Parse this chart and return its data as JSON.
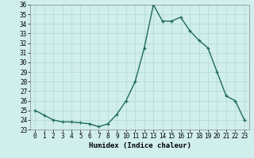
{
  "x": [
    0,
    1,
    2,
    3,
    4,
    5,
    6,
    7,
    8,
    9,
    10,
    11,
    12,
    13,
    14,
    15,
    16,
    17,
    18,
    19,
    20,
    21,
    22,
    23
  ],
  "y": [
    25.0,
    24.5,
    24.0,
    23.8,
    23.8,
    23.7,
    23.6,
    23.3,
    23.6,
    24.6,
    26.0,
    28.0,
    31.5,
    36.0,
    34.3,
    34.3,
    34.7,
    33.3,
    32.3,
    31.5,
    29.0,
    26.5,
    26.0,
    24.0
  ],
  "xlabel": "Humidex (Indice chaleur)",
  "xlim": [
    -0.5,
    23.5
  ],
  "ylim": [
    23,
    36
  ],
  "yticks": [
    23,
    24,
    25,
    26,
    27,
    28,
    29,
    30,
    31,
    32,
    33,
    34,
    35,
    36
  ],
  "xticks": [
    0,
    1,
    2,
    3,
    4,
    5,
    6,
    7,
    8,
    9,
    10,
    11,
    12,
    13,
    14,
    15,
    16,
    17,
    18,
    19,
    20,
    21,
    22,
    23
  ],
  "line_color": "#1f6b5a",
  "marker": "+",
  "bg_color": "#d0eeec",
  "grid_color": "#b0d8d5",
  "axis_label_fontsize": 6.5,
  "tick_fontsize": 5.5,
  "line_width": 1.0,
  "marker_size": 3.5,
  "marker_edge_width": 0.9
}
